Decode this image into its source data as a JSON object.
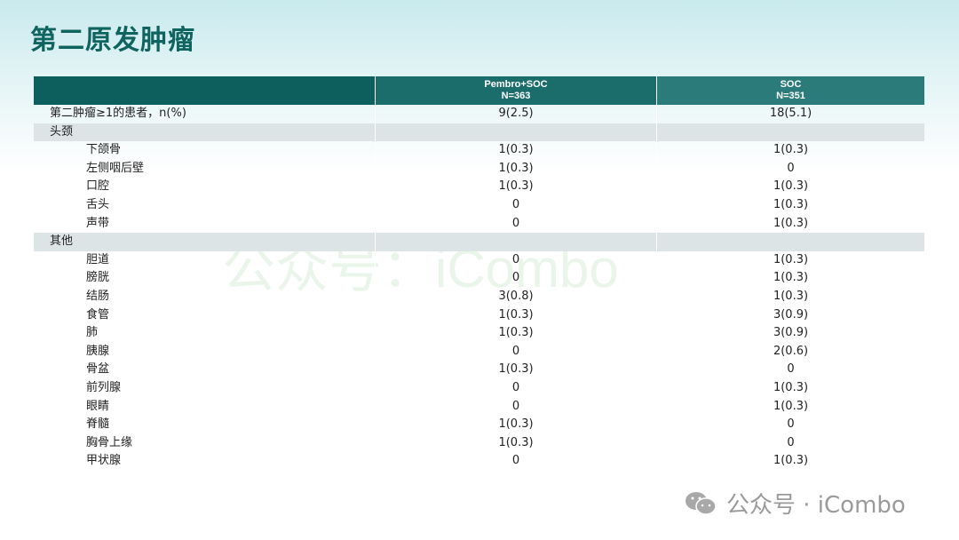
{
  "title": "第二原发肿瘤",
  "columns": [
    {
      "name": "Pembro+SOC",
      "n": "N=363"
    },
    {
      "name": "SOC",
      "n": "N=351"
    }
  ],
  "rows": [
    {
      "label": "第二肿瘤≥1的患者，n(%)",
      "a": "9(2.5)",
      "b": "18(5.1)",
      "type": "top"
    },
    {
      "label": "头颈",
      "a": "",
      "b": "",
      "type": "grp"
    },
    {
      "label": "下颌骨",
      "a": "1(0.3)",
      "b": "1(0.3)",
      "type": "sub"
    },
    {
      "label": "左侧咽后壁",
      "a": "1(0.3)",
      "b": "0",
      "type": "sub"
    },
    {
      "label": "口腔",
      "a": "1(0.3)",
      "b": "1(0.3)",
      "type": "sub"
    },
    {
      "label": "舌头",
      "a": "0",
      "b": "1(0.3)",
      "type": "sub"
    },
    {
      "label": "声带",
      "a": "0",
      "b": "1(0.3)",
      "type": "sub"
    },
    {
      "label": "其他",
      "a": "",
      "b": "",
      "type": "grp"
    },
    {
      "label": "胆道",
      "a": "0",
      "b": "1(0.3)",
      "type": "sub"
    },
    {
      "label": "膀胱",
      "a": "0",
      "b": "1(0.3)",
      "type": "sub"
    },
    {
      "label": "结肠",
      "a": "3(0.8)",
      "b": "1(0.3)",
      "type": "sub"
    },
    {
      "label": "食管",
      "a": "1(0.3)",
      "b": "3(0.9)",
      "type": "sub"
    },
    {
      "label": "肺",
      "a": "1(0.3)",
      "b": "3(0.9)",
      "type": "sub"
    },
    {
      "label": "胰腺",
      "a": "0",
      "b": "2(0.6)",
      "type": "sub"
    },
    {
      "label": "骨盆",
      "a": "1(0.3)",
      "b": "0",
      "type": "sub"
    },
    {
      "label": "前列腺",
      "a": "0",
      "b": "1(0.3)",
      "type": "sub"
    },
    {
      "label": "眼睛",
      "a": "0",
      "b": "1(0.3)",
      "type": "sub"
    },
    {
      "label": "脊髓",
      "a": "1(0.3)",
      "b": "0",
      "type": "sub"
    },
    {
      "label": "胸骨上缘",
      "a": "1(0.3)",
      "b": "0",
      "type": "sub"
    },
    {
      "label": "甲状腺",
      "a": "0",
      "b": "1(0.3)",
      "type": "sub"
    }
  ],
  "watermark": "公众号：iCombo",
  "footer": {
    "text": "公众号 · iCombo",
    "icon": "wechat-icon"
  }
}
